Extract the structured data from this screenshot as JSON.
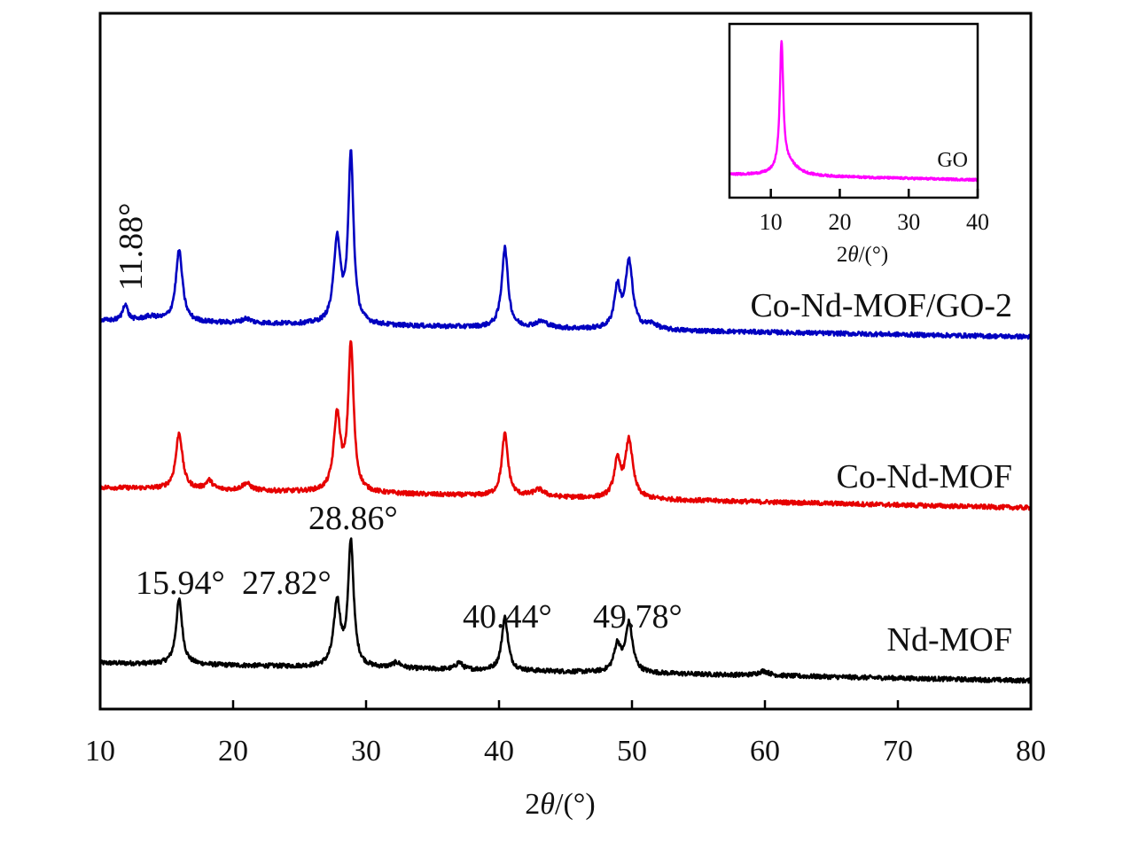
{
  "chart_data": {
    "type": "line",
    "title": "",
    "xlabel": "2θ/(°)",
    "ylabel": "",
    "xlim": [
      10,
      80
    ],
    "ylim": [
      0,
      785
    ],
    "xticks": [
      10,
      20,
      30,
      40,
      50,
      60,
      70,
      80
    ],
    "grid": false,
    "series": [
      {
        "name": "Nd-MOF",
        "color": "#000000",
        "baseline": [
          52,
          32
        ],
        "peaks": [
          [
            15.94,
            73,
            0.28
          ],
          [
            27.82,
            72,
            0.3
          ],
          [
            28.86,
            140,
            0.25
          ],
          [
            32.3,
            6,
            0.4
          ],
          [
            37.0,
            8,
            0.3
          ],
          [
            40.44,
            60,
            0.28
          ],
          [
            48.9,
            30,
            0.3
          ],
          [
            49.78,
            55,
            0.32
          ],
          [
            59.9,
            5,
            0.5
          ]
        ]
      },
      {
        "name": "Co-Nd-MOF",
        "color": "#e60000",
        "baseline": [
          250,
          227
        ],
        "peaks": [
          [
            15.94,
            63,
            0.3
          ],
          [
            18.2,
            10,
            0.3
          ],
          [
            21.0,
            8,
            0.4
          ],
          [
            27.82,
            85,
            0.3
          ],
          [
            28.86,
            165,
            0.25
          ],
          [
            40.44,
            70,
            0.28
          ],
          [
            43.0,
            8,
            0.5
          ],
          [
            48.9,
            40,
            0.3
          ],
          [
            49.78,
            65,
            0.33
          ]
        ]
      },
      {
        "name": "Co-Nd-MOF/GO-2",
        "color": "#0000c0",
        "baseline": [
          438,
          420
        ],
        "peaks": [
          [
            11.88,
            19,
            0.22
          ],
          [
            13.8,
            5,
            0.8
          ],
          [
            15.94,
            80,
            0.3
          ],
          [
            21.0,
            5,
            0.4
          ],
          [
            27.82,
            95,
            0.3
          ],
          [
            28.86,
            190,
            0.24
          ],
          [
            40.44,
            90,
            0.28
          ],
          [
            43.2,
            7,
            0.6
          ],
          [
            48.9,
            45,
            0.28
          ],
          [
            49.78,
            75,
            0.33
          ],
          [
            51.5,
            6,
            0.5
          ]
        ]
      }
    ],
    "series_labels": [
      "Nd-MOF",
      "Co-Nd-MOF",
      "Co-Nd-MOF/GO-2"
    ],
    "annotations": [
      "15.94°",
      "27.82°",
      "28.86°",
      "40.44°",
      "49.78°",
      "11.88°"
    ],
    "inset": {
      "type": "line",
      "xlabel": "2θ/(°)",
      "xlim": [
        4,
        40
      ],
      "ylim": [
        0,
        196
      ],
      "xticks": [
        10,
        20,
        30,
        40
      ],
      "series": [
        {
          "name": "GO",
          "color": "#ff00ff",
          "baseline": [
            26,
            20
          ],
          "peaks": [
            [
              11.55,
              142,
              0.3
            ],
            [
              12.5,
              14,
              1.6
            ]
          ]
        }
      ]
    }
  }
}
